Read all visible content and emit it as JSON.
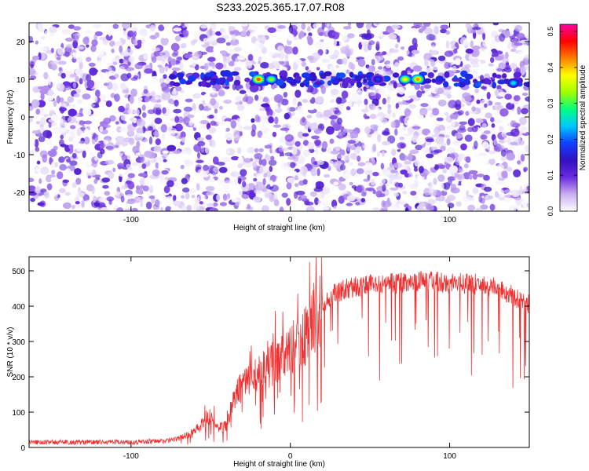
{
  "title": "S233.2025.365.17.07.R08",
  "colors": {
    "line": "#f03030",
    "axis": "#000000",
    "colormap": [
      "#ffffff",
      "#c8aef0",
      "#6a2be0",
      "#3310c0",
      "#1040ff",
      "#00c8ff",
      "#00ff80",
      "#a0ff00",
      "#ffff00",
      "#ff8000",
      "#ff0000",
      "#ff00a0"
    ]
  },
  "chart_data": [
    {
      "type": "heatmap",
      "title": "S233.2025.365.17.07.R08",
      "xlabel": "Height of straight line (km)",
      "ylabel": "Frequency (Hz)",
      "xlim": [
        -164,
        150
      ],
      "ylim": [
        -25,
        25
      ],
      "xticks": [
        -100,
        0,
        100
      ],
      "yticks": [
        -20,
        -10,
        0,
        10,
        20
      ],
      "colorbar": {
        "label": "Normalized spectral amplitude",
        "range": [
          0.0,
          0.52
        ],
        "ticks": [
          0.0,
          0.1,
          0.2,
          0.3,
          0.4,
          0.5
        ],
        "tick_labels": [
          "0.0",
          "0.1",
          "0.2",
          "0.3",
          "0.4",
          "0.5"
        ]
      },
      "hotspots": [
        {
          "x": -20,
          "y": 10,
          "value": 0.44
        },
        {
          "x": -12,
          "y": 10,
          "value": 0.33
        },
        {
          "x": 72,
          "y": 10,
          "value": 0.38
        },
        {
          "x": 80,
          "y": 10,
          "value": 0.42
        },
        {
          "x": 55,
          "y": 10,
          "value": 0.18
        },
        {
          "x": 140,
          "y": 9,
          "value": 0.25
        }
      ]
    },
    {
      "type": "line",
      "title": "",
      "xlabel": "Height of straight line (km)",
      "ylabel": "SNR (10 * v/v)",
      "xlim": [
        -164,
        150
      ],
      "ylim": [
        0,
        540
      ],
      "xticks": [
        -100,
        0,
        100
      ],
      "yticks": [
        0,
        100,
        200,
        300,
        400,
        500
      ],
      "series": [
        {
          "name": "SNR",
          "x": [
            -164,
            -140,
            -120,
            -100,
            -80,
            -70,
            -60,
            -55,
            -50,
            -45,
            -40,
            -35,
            -30,
            -25,
            -20,
            -15,
            -10,
            -5,
            0,
            5,
            10,
            15,
            20,
            25,
            30,
            40,
            50,
            60,
            70,
            80,
            90,
            100,
            110,
            120,
            130,
            140,
            150
          ],
          "values": [
            15,
            15,
            15,
            15,
            18,
            25,
            45,
            70,
            90,
            55,
            60,
            150,
            170,
            190,
            205,
            220,
            240,
            260,
            270,
            290,
            320,
            360,
            400,
            425,
            440,
            455,
            460,
            465,
            465,
            470,
            470,
            465,
            465,
            460,
            450,
            430,
            405
          ]
        }
      ]
    }
  ]
}
